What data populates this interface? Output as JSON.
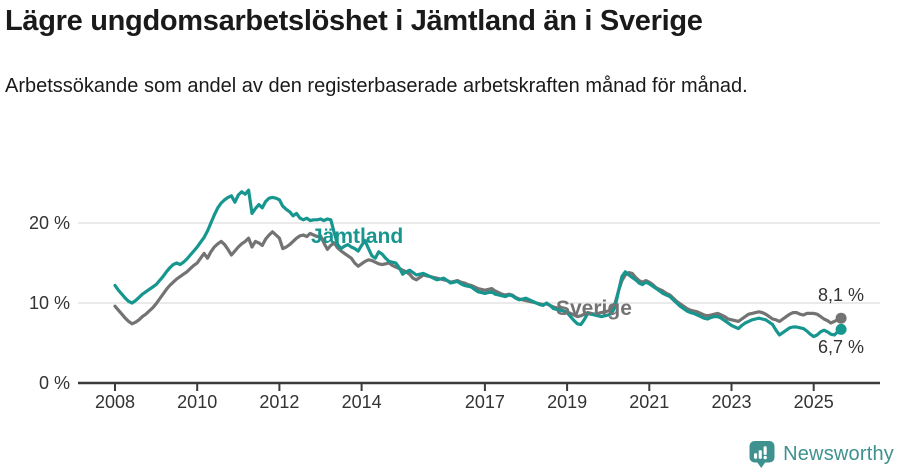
{
  "header": {
    "title": "Lägre ungdomsarbetslöshet i Jämtland än i Sverige",
    "subtitle": "Arbetssökande som andel av den registerbaserade arbetskraften månad för månad."
  },
  "chart_data": {
    "type": "line",
    "x_unit": "decimal_year_monthly",
    "x_start": 2008.0,
    "x_step": 0.08333,
    "x_end": 2025.667,
    "ylim": [
      0,
      26
    ],
    "grid": "horizontal",
    "legend_position": "inline-labels",
    "yticks": [
      {
        "v": 0,
        "label": "0 %"
      },
      {
        "v": 10,
        "label": "10 %"
      },
      {
        "v": 20,
        "label": "20 %"
      }
    ],
    "xticks": [
      {
        "v": 2008,
        "label": "2008"
      },
      {
        "v": 2010,
        "label": "2010"
      },
      {
        "v": 2012,
        "label": "2012"
      },
      {
        "v": 2014,
        "label": "2014"
      },
      {
        "v": 2017,
        "label": "2017"
      },
      {
        "v": 2019,
        "label": "2019"
      },
      {
        "v": 2021,
        "label": "2021"
      },
      {
        "v": 2023,
        "label": "2023"
      },
      {
        "v": 2025,
        "label": "2025"
      }
    ],
    "series": [
      {
        "name": "Jämtland",
        "color": "#17968F",
        "end_label": "6,7 %",
        "values": [
          12.2,
          11.6,
          11.1,
          10.6,
          10.2,
          10.0,
          10.3,
          10.7,
          11.1,
          11.4,
          11.7,
          12.0,
          12.3,
          12.8,
          13.3,
          13.9,
          14.4,
          14.8,
          15.0,
          14.8,
          15.1,
          15.5,
          16.0,
          16.5,
          17.0,
          17.6,
          18.2,
          19.0,
          20.0,
          21.0,
          21.9,
          22.5,
          22.9,
          23.2,
          23.4,
          22.6,
          23.5,
          23.9,
          23.6,
          24.1,
          21.2,
          21.8,
          22.3,
          21.9,
          22.7,
          23.1,
          23.2,
          23.1,
          22.9,
          22.1,
          21.7,
          21.4,
          20.9,
          21.2,
          20.6,
          20.4,
          20.6,
          20.3,
          20.4,
          20.4,
          20.5,
          20.3,
          20.5,
          20.4,
          18.8,
          17.3,
          16.8,
          17.1,
          17.3,
          17.0,
          16.8,
          16.5,
          17.2,
          17.8,
          16.8,
          15.9,
          15.6,
          16.4,
          16.1,
          15.6,
          15.2,
          15.1,
          15.0,
          14.4,
          13.6,
          13.9,
          14.1,
          13.8,
          13.5,
          13.6,
          13.7,
          13.5,
          13.3,
          13.1,
          12.9,
          13.0,
          13.1,
          12.8,
          12.5,
          12.6,
          12.7,
          12.4,
          12.2,
          12.1,
          12.0,
          11.7,
          11.4,
          11.3,
          11.2,
          11.3,
          11.4,
          11.1,
          11.0,
          10.9,
          10.8,
          11.0,
          10.9,
          10.6,
          10.4,
          10.5,
          10.6,
          10.4,
          10.2,
          10.0,
          9.8,
          9.7,
          10.0,
          9.7,
          9.3,
          9.2,
          9.1,
          9.0,
          8.8,
          8.3,
          7.8,
          7.4,
          7.3,
          7.9,
          8.7,
          8.6,
          8.5,
          8.4,
          8.3,
          8.4,
          8.5,
          8.7,
          9.5,
          11.5,
          13.3,
          13.9,
          13.5,
          13.2,
          12.9,
          12.5,
          12.3,
          12.6,
          12.4,
          12.1,
          11.8,
          11.5,
          11.2,
          11.0,
          10.8,
          10.4,
          10.0,
          9.6,
          9.3,
          9.0,
          8.8,
          8.7,
          8.5,
          8.3,
          8.1,
          8.0,
          8.2,
          8.3,
          8.3,
          8.1,
          7.8,
          7.5,
          7.2,
          7.0,
          6.8,
          7.2,
          7.5,
          7.7,
          7.9,
          8.0,
          8.1,
          8.0,
          7.9,
          7.6,
          7.3,
          6.6,
          6.0,
          6.3,
          6.6,
          6.9,
          7.0,
          7.0,
          6.9,
          6.8,
          6.5,
          6.1,
          5.8,
          6.0,
          6.4,
          6.6,
          6.4,
          6.1,
          6.0,
          6.4,
          6.7
        ]
      },
      {
        "name": "Sverige",
        "color": "#737373",
        "end_label": "8,1 %",
        "values": [
          9.6,
          9.1,
          8.6,
          8.1,
          7.7,
          7.4,
          7.6,
          7.9,
          8.3,
          8.6,
          9.0,
          9.4,
          9.9,
          10.5,
          11.1,
          11.7,
          12.2,
          12.6,
          13.0,
          13.3,
          13.6,
          13.9,
          14.3,
          14.7,
          15.0,
          15.6,
          16.2,
          15.6,
          16.4,
          17.0,
          17.4,
          17.7,
          17.3,
          16.7,
          16.0,
          16.5,
          17.0,
          17.4,
          17.7,
          18.1,
          17.0,
          17.7,
          17.5,
          17.2,
          18.0,
          18.5,
          18.9,
          18.5,
          18.1,
          16.8,
          17.0,
          17.3,
          17.7,
          18.1,
          18.4,
          18.5,
          18.3,
          18.7,
          18.5,
          18.3,
          18.4,
          17.5,
          16.7,
          17.2,
          17.5,
          16.9,
          16.5,
          16.2,
          15.9,
          15.6,
          15.0,
          14.6,
          14.9,
          15.2,
          15.4,
          15.3,
          15.1,
          14.9,
          14.8,
          14.9,
          15.0,
          14.7,
          14.5,
          14.3,
          14.1,
          13.9,
          13.6,
          13.1,
          12.9,
          13.2,
          13.5,
          13.4,
          13.3,
          13.2,
          13.1,
          13.0,
          12.9,
          12.8,
          12.6,
          12.7,
          12.8,
          12.6,
          12.5,
          12.3,
          12.2,
          12.0,
          11.8,
          11.7,
          11.6,
          11.7,
          11.8,
          11.5,
          11.3,
          11.1,
          11.0,
          11.1,
          11.0,
          10.7,
          10.5,
          10.4,
          10.3,
          10.2,
          10.1,
          10.0,
          9.9,
          9.8,
          9.9,
          9.7,
          9.5,
          9.4,
          9.2,
          9.0,
          8.9,
          8.7,
          8.5,
          8.3,
          8.4,
          8.6,
          8.8,
          8.7,
          8.6,
          8.7,
          8.8,
          8.9,
          9.0,
          9.2,
          10.0,
          11.5,
          12.8,
          13.5,
          13.8,
          13.7,
          13.2,
          12.8,
          12.6,
          12.8,
          12.6,
          12.3,
          11.9,
          11.7,
          11.5,
          11.2,
          11.0,
          10.6,
          10.2,
          9.9,
          9.6,
          9.3,
          9.1,
          9.0,
          8.9,
          8.7,
          8.5,
          8.4,
          8.5,
          8.6,
          8.7,
          8.5,
          8.3,
          8.0,
          7.9,
          7.8,
          7.7,
          8.0,
          8.3,
          8.6,
          8.7,
          8.8,
          8.9,
          8.8,
          8.6,
          8.3,
          8.0,
          7.9,
          7.7,
          8.0,
          8.3,
          8.6,
          8.8,
          8.8,
          8.6,
          8.5,
          8.7,
          8.7,
          8.7,
          8.6,
          8.3,
          8.0,
          7.8,
          7.5,
          7.7,
          7.9,
          8.1
        ]
      }
    ]
  },
  "colors": {
    "accent_teal": "#17968F",
    "series_gray": "#737373",
    "grid": "#dddddd",
    "axis": "#3a3a3a",
    "tick_text": "#333333",
    "title_text": "#1a1a1a",
    "brand_teal": "#3e918e"
  },
  "footer": {
    "brand": "Newsworthy"
  }
}
